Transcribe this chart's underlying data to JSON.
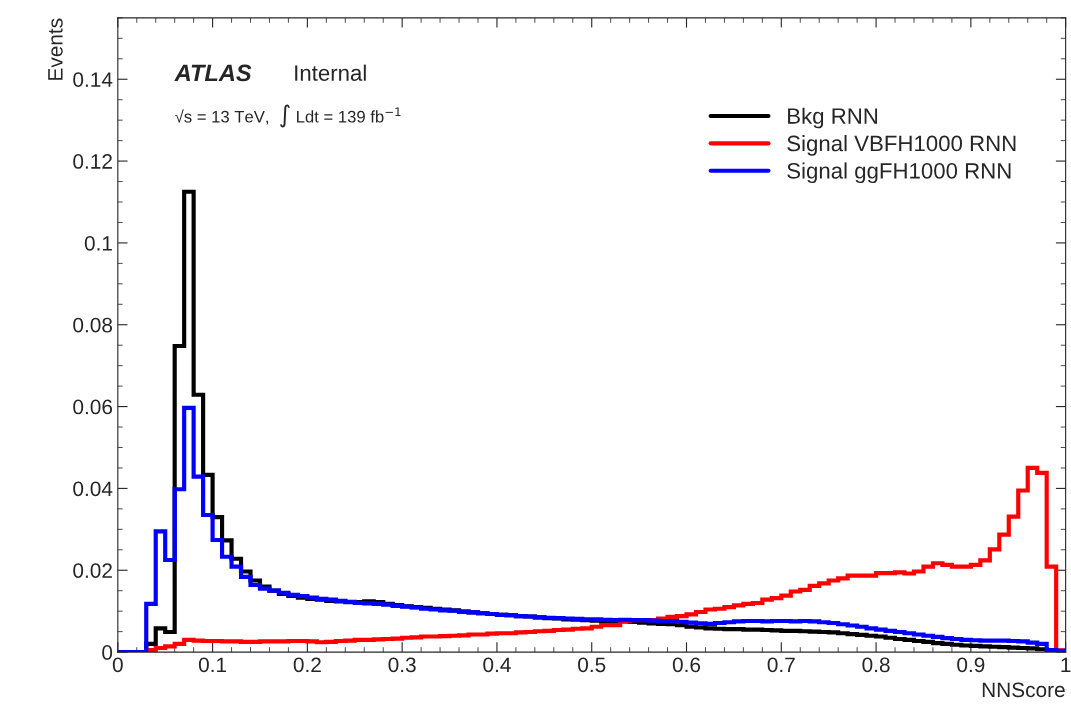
{
  "chart_data": {
    "type": "histogram",
    "xlabel": "NNScore",
    "ylabel": "Events",
    "annotations": [
      "ATLAS",
      "Internal",
      "√s = 13 TeV,  ∫ Ldt = 139 fb$^{−1}$"
    ],
    "bins": [
      0,
      0.01,
      0.02,
      0.03,
      0.04,
      0.05,
      0.06,
      0.07,
      0.08,
      0.09,
      0.1,
      0.11,
      0.12,
      0.13,
      0.14,
      0.15,
      0.16,
      0.17,
      0.18,
      0.19,
      0.2,
      0.21,
      0.22,
      0.23,
      0.24,
      0.25,
      0.26,
      0.27,
      0.28,
      0.29,
      0.3,
      0.31,
      0.32,
      0.33,
      0.34,
      0.35,
      0.36,
      0.37,
      0.38,
      0.39,
      0.4,
      0.41,
      0.42,
      0.43,
      0.44,
      0.45,
      0.46,
      0.47,
      0.48,
      0.49,
      0.5,
      0.51,
      0.52,
      0.53,
      0.54,
      0.55,
      0.56,
      0.57,
      0.58,
      0.59,
      0.6,
      0.61,
      0.62,
      0.63,
      0.64,
      0.65,
      0.66,
      0.67,
      0.68,
      0.69,
      0.7,
      0.71,
      0.72,
      0.73,
      0.74,
      0.75,
      0.76,
      0.77,
      0.78,
      0.79,
      0.8,
      0.81,
      0.82,
      0.83,
      0.84,
      0.85,
      0.86,
      0.87,
      0.88,
      0.89,
      0.9,
      0.91,
      0.92,
      0.93,
      0.94,
      0.95,
      0.96,
      0.97,
      0.98,
      0.99,
      1
    ],
    "series": [
      {
        "name": "Bkg RNN",
        "color": "#000000",
        "values": [
          0,
          0,
          0,
          0.002,
          0.0058,
          0.0049,
          0.0748,
          0.1125,
          0.0629,
          0.0433,
          0.033,
          0.0273,
          0.0228,
          0.0197,
          0.0175,
          0.016,
          0.015,
          0.0142,
          0.0137,
          0.0133,
          0.013,
          0.0128,
          0.0125,
          0.0124,
          0.0123,
          0.0122,
          0.0124,
          0.0122,
          0.0118,
          0.0115,
          0.0112,
          0.011,
          0.0108,
          0.0106,
          0.0104,
          0.0102,
          0.0099,
          0.0097,
          0.0095,
          0.0093,
          0.0091,
          0.009,
          0.0088,
          0.0087,
          0.0085,
          0.0083,
          0.0082,
          0.008,
          0.0079,
          0.0078,
          0.0077,
          0.0076,
          0.0075,
          0.0075,
          0.0074,
          0.0072,
          0.007,
          0.0069,
          0.0068,
          0.0066,
          0.0062,
          0.006,
          0.0058,
          0.0057,
          0.0056,
          0.0056,
          0.0055,
          0.0055,
          0.0054,
          0.0053,
          0.0052,
          0.0052,
          0.0051,
          0.005,
          0.0049,
          0.0048,
          0.0046,
          0.0044,
          0.0042,
          0.004,
          0.0038,
          0.0035,
          0.0032,
          0.003,
          0.0027,
          0.0025,
          0.0022,
          0.002,
          0.0018,
          0.0016,
          0.0015,
          0.0014,
          0.0013,
          0.0012,
          0.0011,
          0.001,
          0.0009,
          0.0007,
          0.0003,
          0
        ]
      },
      {
        "name": "Signal VBFH1000 RNN",
        "color": "#ff0000",
        "values": [
          0,
          0,
          0,
          0.0005,
          0.001,
          0.0014,
          0.002,
          0.003,
          0.0028,
          0.0027,
          0.0027,
          0.0026,
          0.0026,
          0.0025,
          0.0025,
          0.0026,
          0.0026,
          0.0026,
          0.0027,
          0.0027,
          0.0026,
          0.0024,
          0.0025,
          0.0027,
          0.0028,
          0.003,
          0.003,
          0.0031,
          0.0032,
          0.0033,
          0.0035,
          0.0036,
          0.0038,
          0.0038,
          0.0039,
          0.004,
          0.0041,
          0.0043,
          0.0043,
          0.0045,
          0.0046,
          0.0046,
          0.0048,
          0.0049,
          0.0051,
          0.0052,
          0.0054,
          0.0055,
          0.0057,
          0.0058,
          0.0062,
          0.0066,
          0.0066,
          0.0075,
          0.0078,
          0.0078,
          0.0078,
          0.0082,
          0.0086,
          0.0088,
          0.0092,
          0.0098,
          0.0104,
          0.0106,
          0.011,
          0.0114,
          0.0118,
          0.012,
          0.0128,
          0.0132,
          0.0138,
          0.0148,
          0.0152,
          0.0162,
          0.0168,
          0.0175,
          0.018,
          0.0187,
          0.0187,
          0.0187,
          0.0193,
          0.0193,
          0.0195,
          0.0192,
          0.0197,
          0.0209,
          0.0217,
          0.0213,
          0.0209,
          0.0209,
          0.0213,
          0.0224,
          0.0251,
          0.0287,
          0.0331,
          0.0395,
          0.045,
          0.0438,
          0.0209,
          0.0004
        ]
      },
      {
        "name": "Signal ggFH1000 RNN",
        "color": "#0000ff",
        "values": [
          0,
          0,
          0,
          0.0118,
          0.0295,
          0.0225,
          0.0398,
          0.0597,
          0.0429,
          0.0335,
          0.0274,
          0.0233,
          0.0209,
          0.0184,
          0.0164,
          0.0155,
          0.015,
          0.0145,
          0.014,
          0.0137,
          0.0133,
          0.013,
          0.0128,
          0.0125,
          0.0122,
          0.012,
          0.0119,
          0.0118,
          0.0116,
          0.0113,
          0.0111,
          0.0109,
          0.0106,
          0.0104,
          0.0102,
          0.0101,
          0.0099,
          0.0097,
          0.0095,
          0.0093,
          0.0091,
          0.009,
          0.0088,
          0.0087,
          0.0085,
          0.0084,
          0.0083,
          0.0082,
          0.0081,
          0.008,
          0.008,
          0.0079,
          0.0078,
          0.0079,
          0.0078,
          0.0078,
          0.0077,
          0.0076,
          0.0076,
          0.0074,
          0.0072,
          0.007,
          0.0069,
          0.0071,
          0.0073,
          0.0075,
          0.0076,
          0.0076,
          0.0075,
          0.0076,
          0.0076,
          0.0075,
          0.0076,
          0.0075,
          0.0073,
          0.0071,
          0.0068,
          0.0065,
          0.0062,
          0.0058,
          0.0055,
          0.0052,
          0.0049,
          0.0046,
          0.0043,
          0.004,
          0.0037,
          0.0034,
          0.0032,
          0.003,
          0.0029,
          0.0028,
          0.0028,
          0.0028,
          0.0027,
          0.0026,
          0.0023,
          0.002,
          0.0005,
          0.0003
        ]
      }
    ],
    "xlim": [
      0,
      1
    ],
    "ylim": [
      0,
      0.155
    ],
    "xticks": [
      0,
      0.1,
      0.2,
      0.3,
      0.4,
      0.5,
      0.6,
      0.7,
      0.8,
      0.9,
      1
    ],
    "yticks": [
      0,
      0.02,
      0.04,
      0.06,
      0.08,
      0.1,
      0.12,
      0.14
    ],
    "grid": false,
    "legend": "top right"
  }
}
